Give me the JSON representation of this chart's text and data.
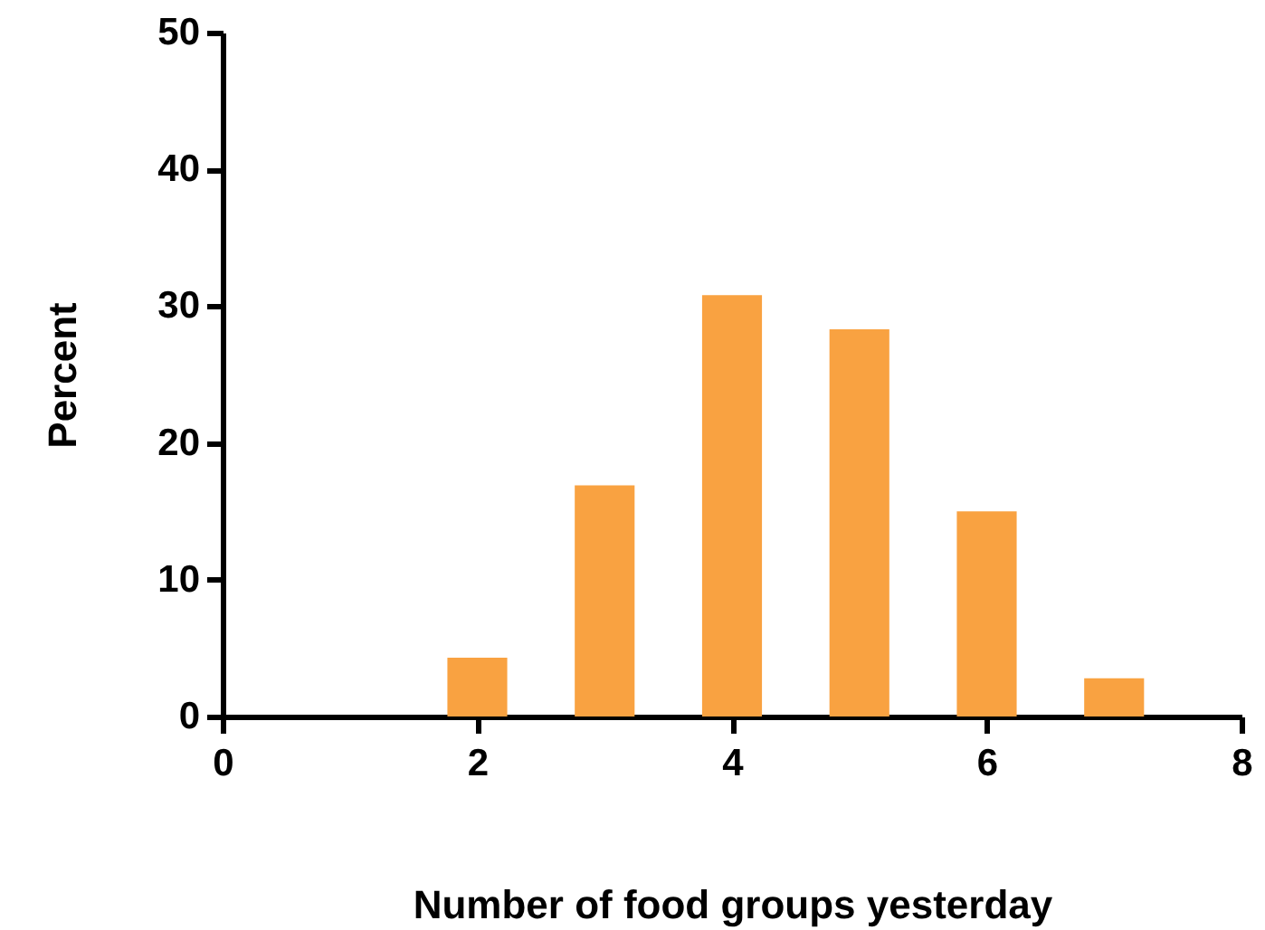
{
  "chart_data": {
    "type": "bar",
    "xlabel": "Number of food groups yesterday",
    "ylabel": "Percent",
    "x": [
      2,
      3,
      4,
      5,
      6,
      7
    ],
    "values": [
      4.3,
      16.9,
      30.8,
      28.3,
      15.0,
      2.8
    ],
    "color": "#f9a241",
    "xlim": [
      0,
      8
    ],
    "xticks": [
      0,
      2,
      4,
      6,
      8
    ],
    "ylim": [
      0,
      50
    ],
    "yticks": [
      0,
      10,
      20,
      30,
      40,
      50
    ],
    "grid": false
  }
}
